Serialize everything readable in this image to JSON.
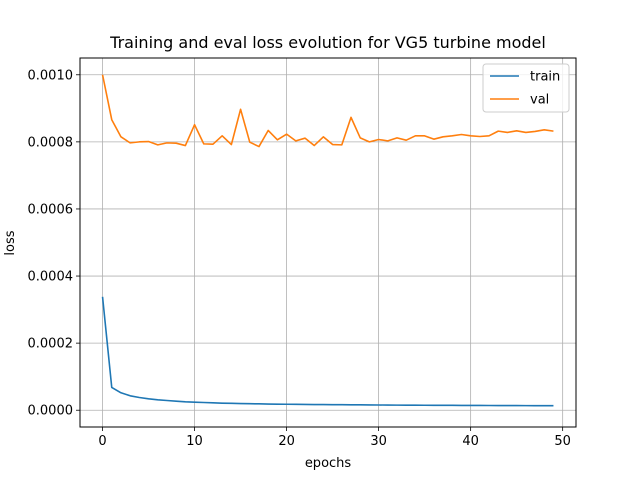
{
  "chart_data": {
    "type": "line",
    "title": "Training and eval loss evolution for VG5 turbine model",
    "xlabel": "epochs",
    "ylabel": "loss",
    "xlim": [
      -2.45,
      51.45
    ],
    "ylim": [
      -5e-05,
      0.00105
    ],
    "grid": true,
    "legend_position": "top-right",
    "x_ticks": [
      0,
      10,
      20,
      30,
      40,
      50
    ],
    "x_tick_labels": [
      "0",
      "10",
      "20",
      "30",
      "40",
      "50"
    ],
    "y_ticks": [
      0.0,
      0.0002,
      0.0004,
      0.0006,
      0.0008,
      0.001
    ],
    "y_tick_labels": [
      "0.0000",
      "0.0002",
      "0.0004",
      "0.0006",
      "0.0008",
      "0.0010"
    ],
    "x": [
      0,
      1,
      2,
      3,
      4,
      5,
      6,
      7,
      8,
      9,
      10,
      11,
      12,
      13,
      14,
      15,
      16,
      17,
      18,
      19,
      20,
      21,
      22,
      23,
      24,
      25,
      26,
      27,
      28,
      29,
      30,
      31,
      32,
      33,
      34,
      35,
      36,
      37,
      38,
      39,
      40,
      41,
      42,
      43,
      44,
      45,
      46,
      47,
      48,
      49
    ],
    "series": [
      {
        "name": "train",
        "color": "#1f77b4",
        "values": [
          0.000338,
          6.8e-05,
          5.2e-05,
          4.3e-05,
          3.8e-05,
          3.4e-05,
          3.1e-05,
          2.9e-05,
          2.7e-05,
          2.5e-05,
          2.4e-05,
          2.3e-05,
          2.2e-05,
          2.1e-05,
          2.05e-05,
          2e-05,
          1.95e-05,
          1.9e-05,
          1.85e-05,
          1.8e-05,
          1.78e-05,
          1.75e-05,
          1.72e-05,
          1.7e-05,
          1.68e-05,
          1.66e-05,
          1.64e-05,
          1.62e-05,
          1.6e-05,
          1.58e-05,
          1.56e-05,
          1.54e-05,
          1.52e-05,
          1.5e-05,
          1.49e-05,
          1.48e-05,
          1.47e-05,
          1.46e-05,
          1.45e-05,
          1.44e-05,
          1.43e-05,
          1.42e-05,
          1.41e-05,
          1.4e-05,
          1.39e-05,
          1.38e-05,
          1.37e-05,
          1.36e-05,
          1.35e-05,
          1.34e-05
        ]
      },
      {
        "name": "val",
        "color": "#ff7f0e",
        "values": [
          0.001,
          0.000866,
          0.000815,
          0.000797,
          0.0008,
          0.000801,
          0.000791,
          0.000797,
          0.000796,
          0.000789,
          0.000851,
          0.000794,
          0.000793,
          0.000818,
          0.000792,
          0.000897,
          0.000799,
          0.000786,
          0.000834,
          0.000806,
          0.000823,
          0.000803,
          0.000811,
          0.000789,
          0.000815,
          0.000792,
          0.000791,
          0.000873,
          0.000812,
          0.0008,
          0.000807,
          0.000803,
          0.000812,
          0.000805,
          0.000818,
          0.000818,
          0.000808,
          0.000815,
          0.000818,
          0.000822,
          0.000818,
          0.000816,
          0.000818,
          0.000832,
          0.000828,
          0.000833,
          0.000828,
          0.000831,
          0.000836,
          0.000832
        ]
      }
    ]
  }
}
